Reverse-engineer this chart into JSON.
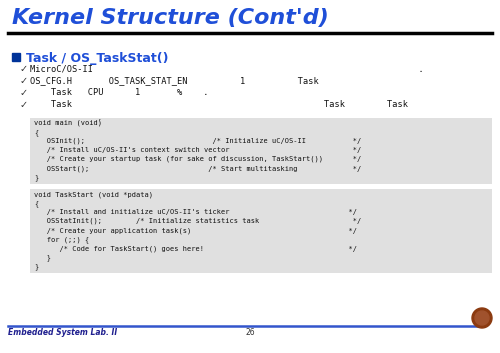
{
  "title": "Kernel Structure (Cont'd)",
  "title_color": "#1F4FD8",
  "title_fontsize": 16,
  "bg_color": "#FFFFFF",
  "header_line_color": "#000000",
  "footer_line_color": "#3355CC",
  "footer_text": "Embedded System Lab. II",
  "footer_page": "26",
  "bullet_square_color": "#003399",
  "section_title": "Task / OS_TaskStat()",
  "section_title_color": "#1F4FD8",
  "bullets": [
    "MicroC/OS-II                                                              .",
    "OS_CFG.H       OS_TASK_STAT_EN          1          Task",
    "    Task   CPU      1       %    .",
    "    Task                                                Task        Task"
  ],
  "code_bg": "#E0E0E0",
  "code_block1": [
    "void main (void)",
    "{",
    "   OSInit();                              /* Initialize uC/OS-II           */",
    "   /* Install uC/OS-II's context switch vector                             */",
    "   /* Create your startup task (for sake of discussion, TaskStart())       */",
    "   OSStart();                            /* Start multitasking             */",
    "}"
  ],
  "code_block2": [
    "void TaskStart (void *pdata)",
    "{",
    "   /* Install and initialize uC/OS-II's ticker                            */",
    "   OSStatInit();        /* Initialize statistics task                      */",
    "   /* Create your application task(s)                                     */",
    "   for (;;) {",
    "      /* Code for TaskStart() goes here!                                  */",
    "   }",
    "}"
  ]
}
